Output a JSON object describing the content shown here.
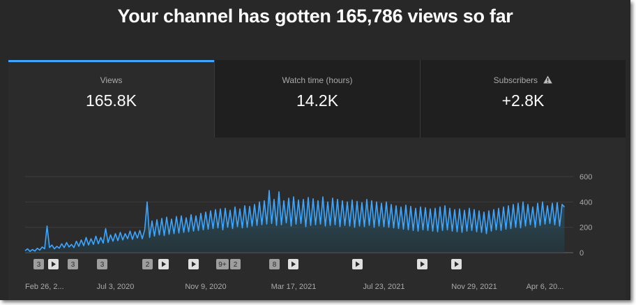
{
  "header": {
    "title": "Your channel has gotten 165,786 views so far"
  },
  "tabs": [
    {
      "label": "Views",
      "value": "165.8K"
    },
    {
      "label": "Watch time (hours)",
      "value": "14.2K"
    },
    {
      "label": "Subscribers",
      "value": "+2.8K"
    }
  ],
  "chart_data": {
    "type": "line",
    "color": "#3ea6ff",
    "grid": true,
    "ylim": [
      0,
      600
    ],
    "yticks": [
      0,
      200,
      400,
      600
    ],
    "video_markers": [
      "3",
      "3",
      "3",
      "2",
      "9+",
      "2",
      "8"
    ],
    "categories": [
      "Feb 26, 2...",
      null,
      null,
      null,
      null,
      null,
      null,
      null,
      null,
      null,
      null,
      null,
      null,
      null,
      null,
      null,
      null,
      null,
      null,
      null,
      null,
      null,
      null,
      null,
      null,
      null,
      null,
      null,
      null,
      null,
      null,
      null,
      null,
      null,
      null,
      null,
      null,
      "Jul 3, 2020",
      null,
      null,
      null,
      null,
      null,
      null,
      null,
      null,
      null,
      null,
      null,
      null,
      null,
      null,
      null,
      null,
      null,
      null,
      null,
      null,
      null,
      null,
      null,
      null,
      null,
      null,
      null,
      null,
      null,
      null,
      null,
      null,
      null,
      null,
      null,
      null,
      "Nov 9, 2020",
      null,
      null,
      null,
      null,
      null,
      null,
      null,
      null,
      null,
      null,
      null,
      null,
      null,
      null,
      null,
      null,
      null,
      null,
      null,
      null,
      null,
      null,
      null,
      null,
      null,
      null,
      null,
      null,
      null,
      null,
      null,
      null,
      null,
      null,
      null,
      "Mar 17, 2021",
      null,
      null,
      null,
      null,
      null,
      null,
      null,
      null,
      null,
      null,
      null,
      null,
      null,
      null,
      null,
      null,
      null,
      null,
      null,
      null,
      null,
      null,
      null,
      null,
      null,
      null,
      null,
      null,
      null,
      null,
      null,
      null,
      null,
      null,
      null,
      null,
      "Jul 23, 2021",
      null,
      null,
      null,
      null,
      null,
      null,
      null,
      null,
      null,
      null,
      null,
      null,
      null,
      null,
      null,
      null,
      null,
      null,
      null,
      null,
      null,
      null,
      null,
      null,
      null,
      null,
      null,
      null,
      null,
      null,
      null,
      null,
      null,
      null,
      null,
      null,
      "Nov 29, 2021",
      null,
      null,
      null,
      null,
      null,
      null,
      null,
      null,
      null,
      null,
      null,
      null,
      null,
      null,
      null,
      null,
      null,
      null,
      null,
      null,
      null,
      null,
      null,
      null,
      null,
      null,
      null,
      null,
      "Apr 6, 20...",
      null,
      null,
      null,
      null,
      null,
      null,
      null,
      null
    ],
    "values": [
      15,
      30,
      10,
      25,
      12,
      35,
      20,
      45,
      30,
      210,
      40,
      60,
      30,
      50,
      35,
      70,
      40,
      80,
      45,
      65,
      40,
      90,
      50,
      100,
      55,
      120,
      60,
      110,
      65,
      130,
      70,
      120,
      75,
      190,
      80,
      140,
      90,
      150,
      95,
      160,
      100,
      150,
      110,
      170,
      105,
      165,
      115,
      175,
      110,
      180,
      400,
      120,
      250,
      130,
      260,
      140,
      270,
      135,
      280,
      145,
      265,
      150,
      285,
      155,
      290,
      160,
      275,
      165,
      300,
      170,
      290,
      175,
      310,
      180,
      320,
      185,
      330,
      190,
      340,
      195,
      345,
      180,
      350,
      200,
      335,
      190,
      360,
      205,
      345,
      195,
      370,
      200,
      365,
      210,
      380,
      215,
      400,
      220,
      410,
      225,
      490,
      230,
      420,
      215,
      480,
      220,
      410,
      235,
      430,
      210,
      440,
      225,
      415,
      230,
      420,
      205,
      435,
      215,
      425,
      220,
      410,
      225,
      440,
      210,
      400,
      215,
      430,
      220,
      420,
      205,
      410,
      215,
      400,
      210,
      415,
      200,
      405,
      210,
      395,
      205,
      420,
      215,
      410,
      200,
      400,
      210,
      390,
      205,
      400,
      200,
      380,
      195,
      370,
      190,
      360,
      185,
      375,
      180,
      365,
      175,
      350,
      170,
      360,
      180,
      355,
      175,
      345,
      170,
      350,
      165,
      360,
      175,
      370,
      180,
      350,
      170,
      340,
      165,
      345,
      160,
      335,
      170,
      350,
      175,
      340,
      165,
      330,
      160,
      320,
      150,
      330,
      170,
      340,
      180,
      350,
      175,
      360,
      185,
      370,
      190,
      380,
      200,
      390,
      195,
      400,
      210,
      380,
      220,
      360,
      200,
      390,
      215,
      400,
      225,
      370,
      230,
      390,
      220,
      395,
      210,
      380,
      360
    ]
  }
}
